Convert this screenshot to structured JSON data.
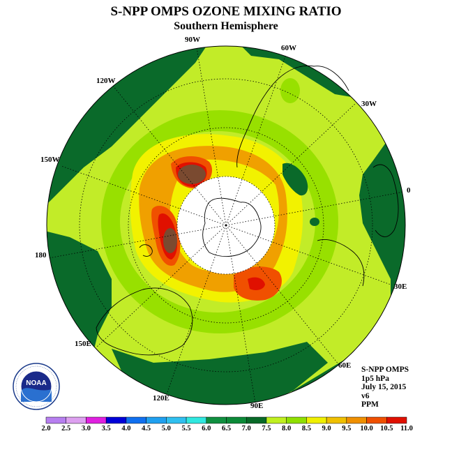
{
  "title": "S-NPP OMPS OZONE MIXING RATIO",
  "subtitle": "Southern Hemisphere",
  "longitude_labels": [
    {
      "text": "90W",
      "key": "lon90w"
    },
    {
      "text": "60W",
      "key": "lon60w"
    },
    {
      "text": "30W",
      "key": "lon30w"
    },
    {
      "text": "0",
      "key": "lon0"
    },
    {
      "text": "30E",
      "key": "lon30e"
    },
    {
      "text": "60E",
      "key": "lon60e"
    },
    {
      "text": "90E",
      "key": "lon90e"
    },
    {
      "text": "120E",
      "key": "lon120e"
    },
    {
      "text": "150E",
      "key": "lon150e"
    },
    {
      "text": "180",
      "key": "lon180"
    },
    {
      "text": "150W",
      "key": "lon150w"
    },
    {
      "text": "120W",
      "key": "lon120w"
    }
  ],
  "info": {
    "instrument": "S-NPP OMPS",
    "level": "1p5 hPa",
    "date": "July 15, 2015",
    "version": "v6",
    "units": "PPM"
  },
  "logo_text": "NOAA",
  "colorbar": {
    "ticks": [
      "2.0",
      "2.5",
      "3.0",
      "3.5",
      "4.0",
      "4.5",
      "5.0",
      "5.5",
      "6.0",
      "6.5",
      "7.0",
      "7.5",
      "8.0",
      "8.5",
      "9.0",
      "9.5",
      "10.0",
      "10.5",
      "11.0"
    ],
    "colors": [
      "#b77ff0",
      "#dda0f0",
      "#e020e0",
      "#0000d8",
      "#1070f0",
      "#20a0f0",
      "#30c0f0",
      "#30e8e0",
      "#109040",
      "#0c8a38",
      "#086a28",
      "#c0f020",
      "#90e000",
      "#f0f000",
      "#f0c000",
      "#f09000",
      "#f05000",
      "#e01000",
      "#7a4a30"
    ]
  },
  "colors": {
    "outer_dark_green": "#0a6a2a",
    "light_green": "#c2ec28",
    "green": "#98e000",
    "yellow": "#f2f200",
    "orange": "#f0a000",
    "red_orange": "#f05000",
    "red": "#e01000",
    "brown": "#7a4a30"
  }
}
